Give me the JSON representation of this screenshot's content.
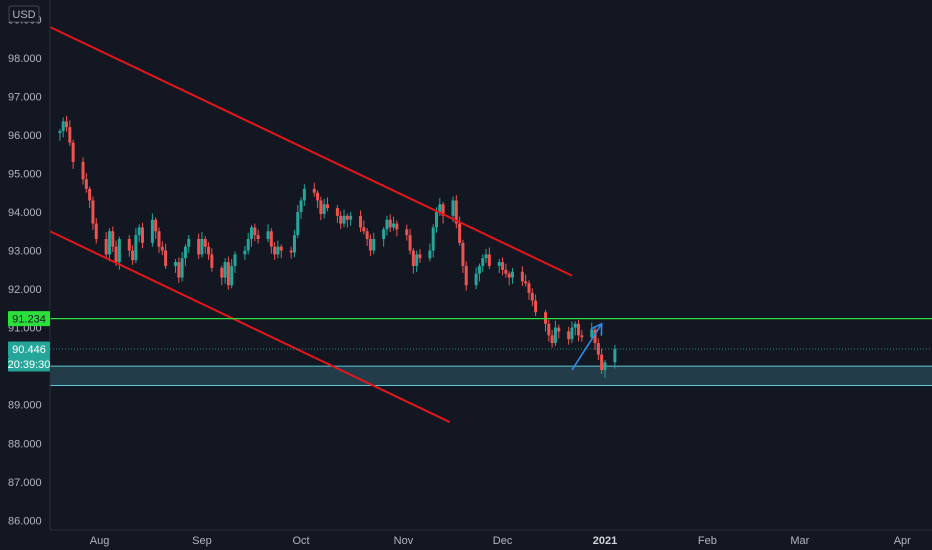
{
  "chart_data": {
    "type": "candlestick",
    "currency_label": "USD",
    "ylim": [
      85.75,
      99.5
    ],
    "y_ticks": [
      {
        "value": 99.0,
        "label": "99.000",
        "partial": true
      },
      {
        "value": 98.0,
        "label": "98.000"
      },
      {
        "value": 97.0,
        "label": "97.000"
      },
      {
        "value": 96.0,
        "label": "96.000"
      },
      {
        "value": 95.0,
        "label": "95.000"
      },
      {
        "value": 94.0,
        "label": "94.000"
      },
      {
        "value": 93.0,
        "label": "93.000"
      },
      {
        "value": 92.0,
        "label": "92.000"
      },
      {
        "value": 91.0,
        "label": "91.000"
      },
      {
        "value": 89.0,
        "label": "89.000"
      },
      {
        "value": 88.0,
        "label": "88.000"
      },
      {
        "value": 87.0,
        "label": "87.000"
      },
      {
        "value": 86.0,
        "label": "86.000"
      }
    ],
    "x_range": [
      "2020-07-17",
      "2021-04-10"
    ],
    "x_ticks": [
      {
        "date": "2020-08-01",
        "label": "Aug",
        "bold": false
      },
      {
        "date": "2020-09-01",
        "label": "Sep",
        "bold": false
      },
      {
        "date": "2020-10-01",
        "label": "Oct",
        "bold": false
      },
      {
        "date": "2020-11-01",
        "label": "Nov",
        "bold": false
      },
      {
        "date": "2020-12-01",
        "label": "Dec",
        "bold": false
      },
      {
        "date": "2021-01-01",
        "label": "2021",
        "bold": true
      },
      {
        "date": "2021-02-01",
        "label": "Feb",
        "bold": false
      },
      {
        "date": "2021-03-01",
        "label": "Mar",
        "bold": false
      },
      {
        "date": "2021-04-01",
        "label": "Apr",
        "bold": false
      }
    ],
    "closes": [
      96.1,
      96.35,
      96.2,
      95.8,
      95.3,
      94.85,
      94.6,
      94.3,
      93.7,
      93.3,
      92.9,
      93.5,
      93.1,
      92.7,
      93.3,
      93.0,
      92.75,
      93.4,
      93.6,
      93.2,
      93.8,
      93.5,
      93.1,
      93.0,
      92.6,
      92.7,
      92.3,
      92.8,
      93.1,
      93.3,
      92.9,
      93.3,
      93.1,
      92.9,
      92.55,
      92.3,
      92.7,
      92.1,
      92.6,
      92.9,
      93.0,
      93.3,
      93.6,
      93.4,
      93.3,
      93.5,
      93.1,
      92.9,
      93.1,
      93.0,
      92.95,
      93.4,
      94.0,
      94.3,
      94.6,
      94.5,
      94.3,
      93.95,
      94.2,
      94.1,
      93.9,
      93.7,
      93.9,
      93.8,
      93.9,
      93.6,
      93.5,
      93.3,
      93.0,
      93.3,
      93.55,
      93.8,
      93.6,
      93.7,
      93.55,
      93.4,
      93.0,
      92.6,
      92.9,
      92.8,
      93.0,
      93.6,
      94.0,
      94.2,
      93.9,
      94.3,
      93.7,
      93.2,
      92.6,
      92.1,
      92.4,
      92.6,
      92.8,
      92.9,
      92.6,
      92.7,
      92.5,
      92.4,
      92.3,
      92.45,
      92.2,
      92.15,
      91.9,
      91.7,
      91.4,
      91.1,
      90.8,
      90.6,
      91.0,
      90.9,
      90.7,
      91.0,
      91.1,
      90.8,
      90.75,
      90.95,
      90.6,
      90.3,
      89.9,
      90.1,
      90.45
    ],
    "series": [
      {
        "name": "",
        "type": "trendline",
        "from": {
          "date": "2020-07-17",
          "value": 98.8
        },
        "to": {
          "date": "2020-12-22",
          "value": 92.35
        }
      },
      {
        "name": "",
        "type": "trendline",
        "from": {
          "date": "2020-07-17",
          "value": 93.5
        },
        "to": {
          "date": "2020-11-15",
          "value": 88.55
        }
      }
    ],
    "levels": {
      "resistance": 91.234,
      "current_price": 90.446,
      "zone_top": 90.0,
      "zone_bottom": 89.5
    },
    "projection_arrow": {
      "from": {
        "date": "2020-12-22",
        "value": 89.9
      },
      "to": {
        "date": "2020-12-31",
        "value": 91.1
      }
    },
    "badges": {
      "resistance_label": "91.234",
      "price_label": "90.446",
      "countdown_label": "20:39:30"
    },
    "colors": {
      "background": "#131722",
      "up": "#26a69a",
      "down": "#ef5350",
      "trend": "#e3161b",
      "resistance": "#2be03b",
      "zone": "#5ac8d8",
      "arrow": "#2e8ae6"
    }
  }
}
